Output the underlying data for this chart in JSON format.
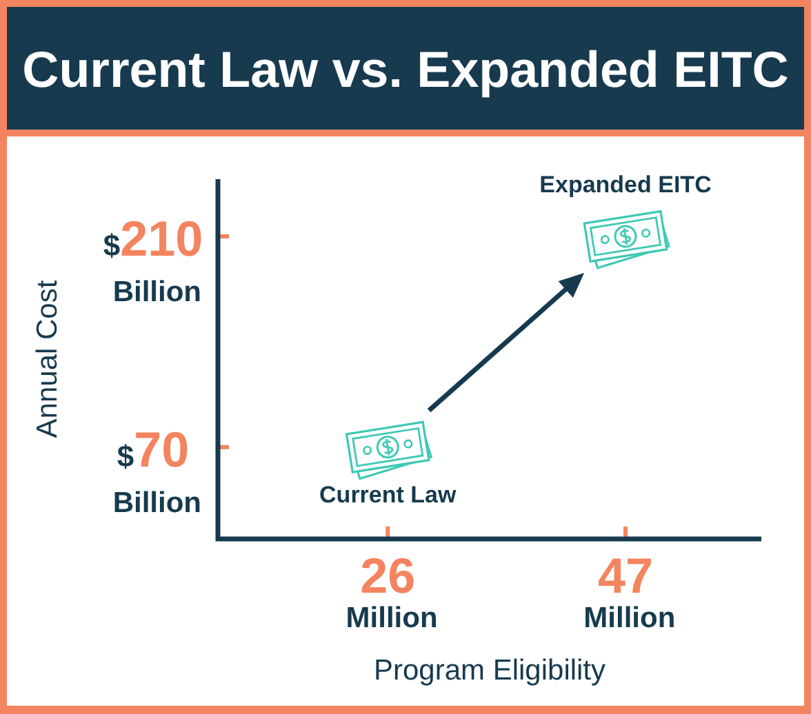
{
  "chart_data": {
    "type": "scatter",
    "title": "Current Law vs. Expanded EITC",
    "xlabel": "Program Eligibility",
    "ylabel": "Annual Cost",
    "x": [
      26,
      47
    ],
    "series": [
      {
        "color": "#3ec9b5",
        "values": [
          70,
          210
        ]
      }
    ],
    "xlim": [
      11,
      59
    ],
    "ylim": [
      9,
      248
    ],
    "xticks": [
      {
        "value": 26,
        "label": "26 Million"
      },
      {
        "value": 47,
        "label": "47 Million"
      }
    ],
    "yticks": [
      {
        "value": 70,
        "label": "$70 Billion"
      },
      {
        "value": 210,
        "label": "$210 Billion"
      }
    ],
    "annotations": [
      {
        "text": "Current Law",
        "x": 26,
        "y": 70
      },
      {
        "text": "Expanded EITC",
        "x": 47,
        "y": 210
      }
    ],
    "marker": "circle"
  }
}
